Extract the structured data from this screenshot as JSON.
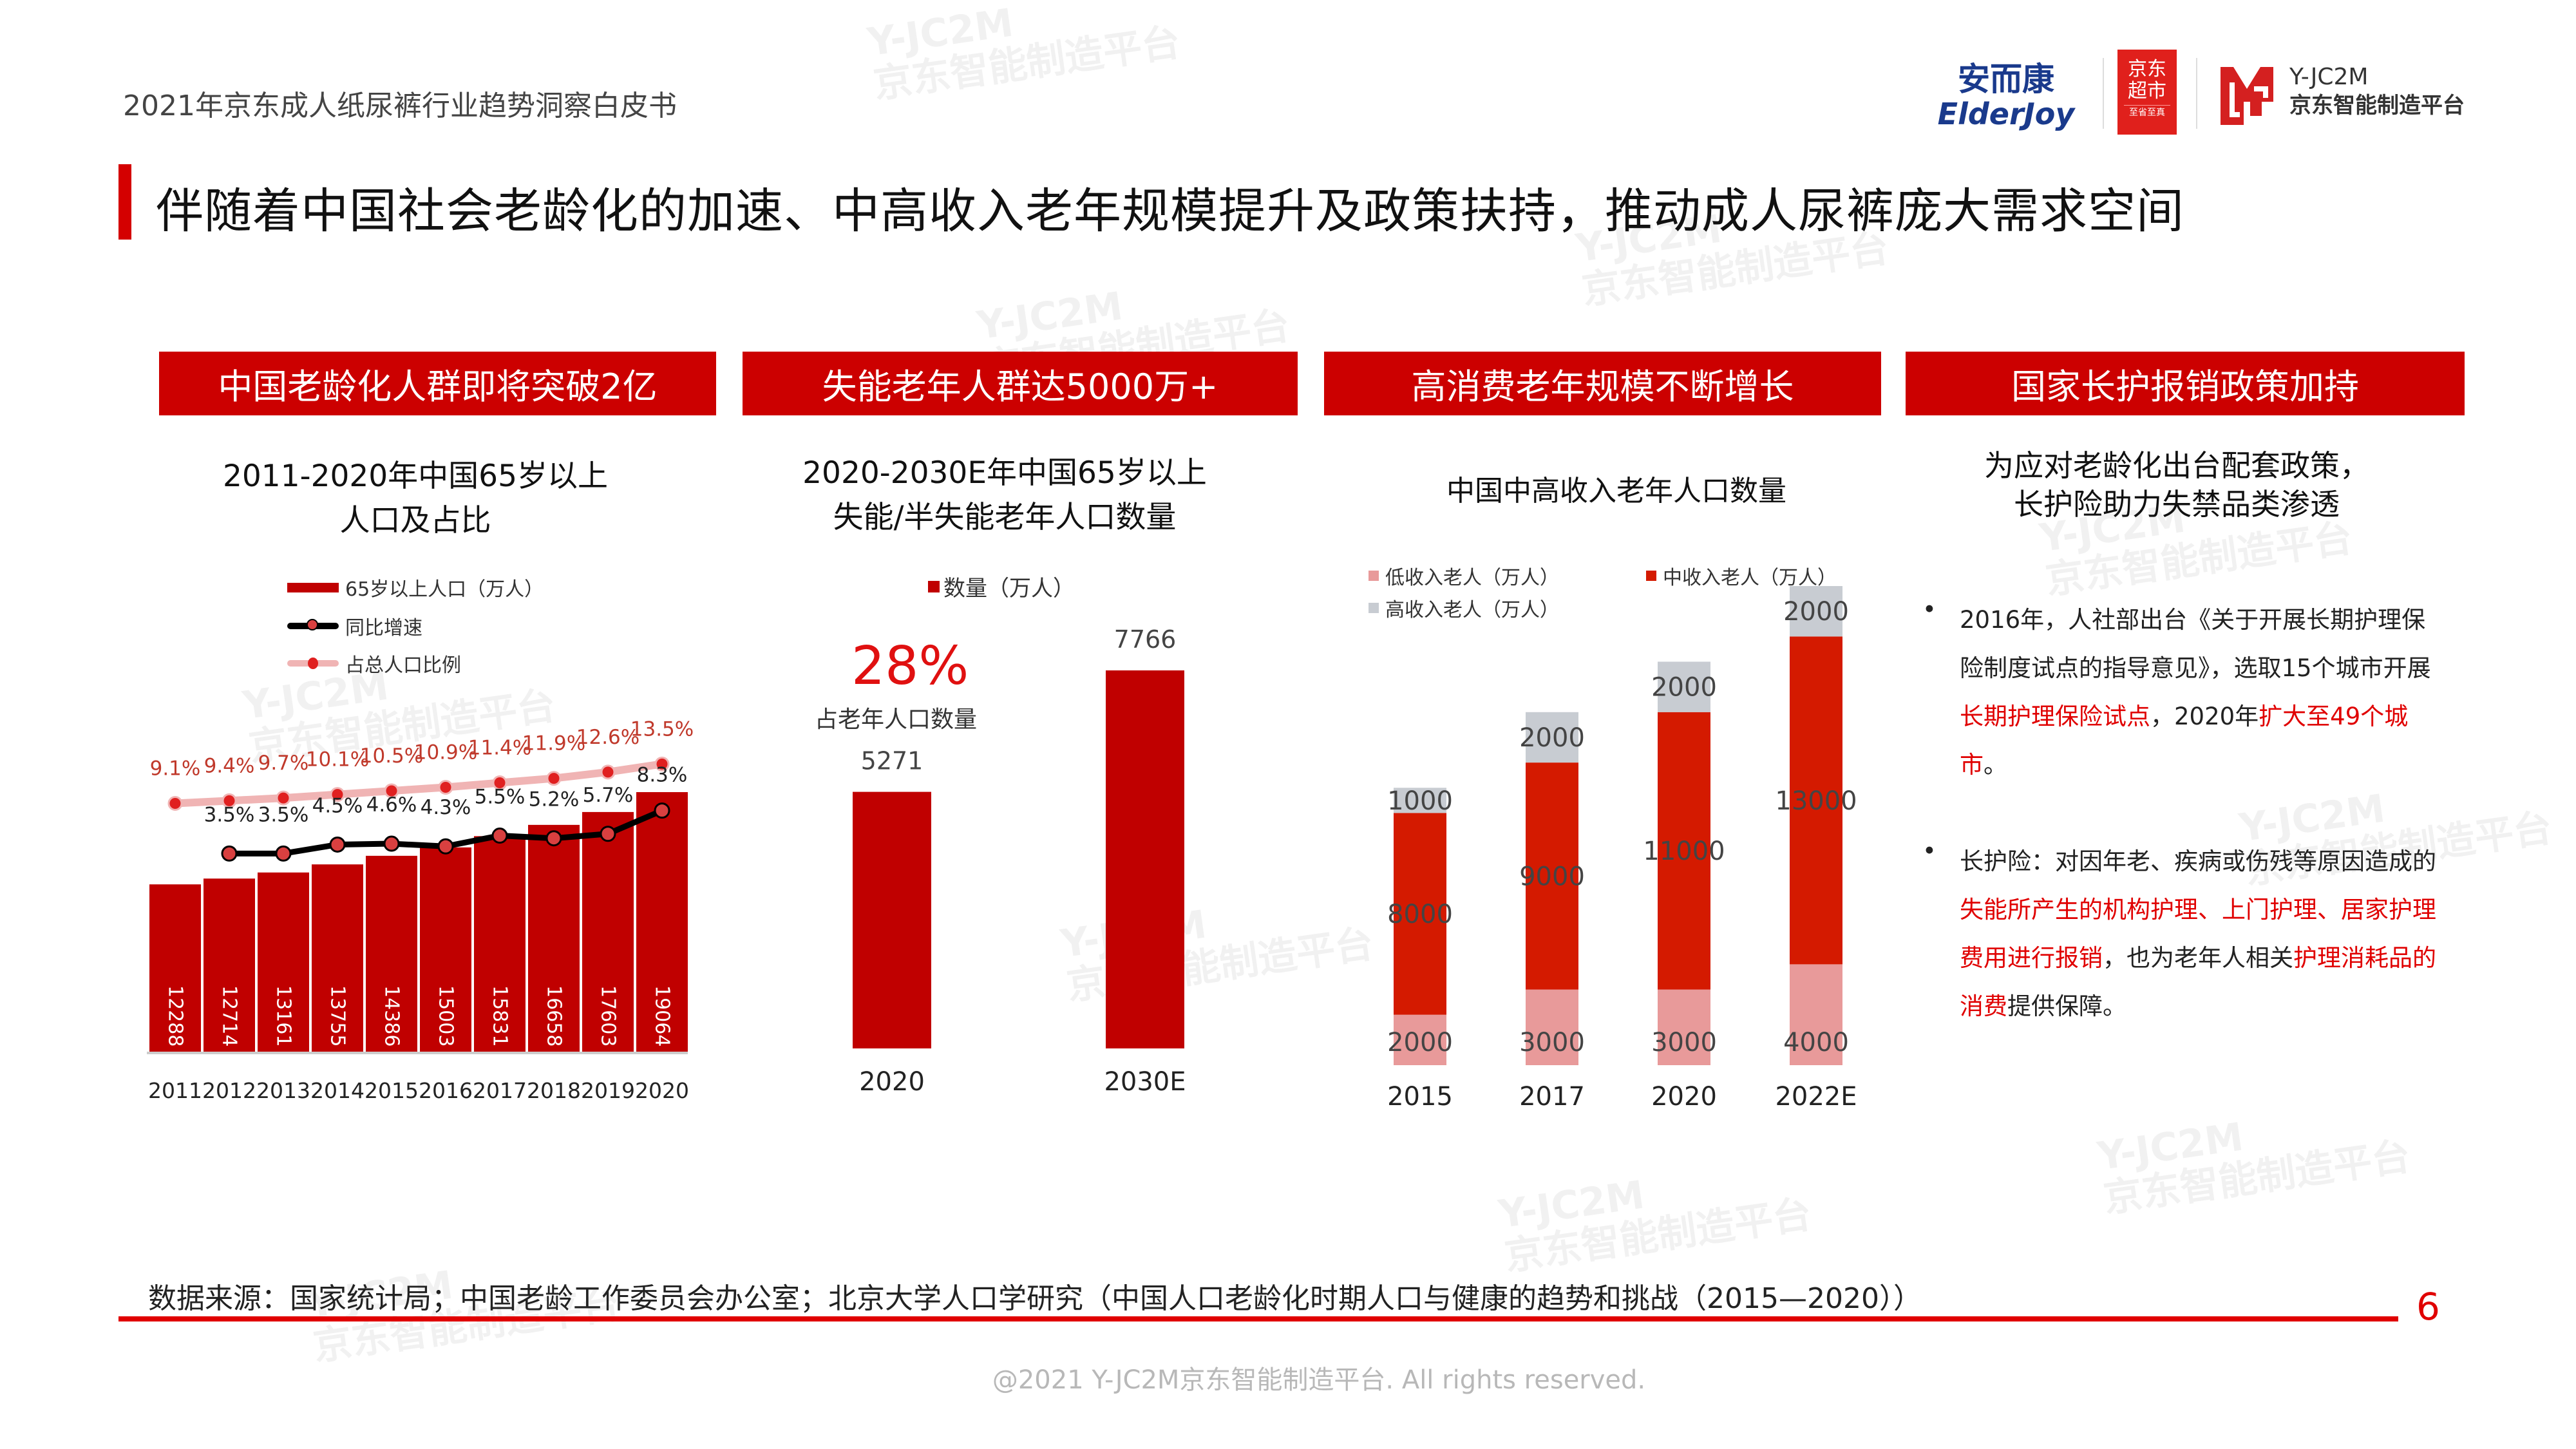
{
  "header": {
    "doc_title": "2021年京东成人纸尿裤行业趋势洞察白皮书",
    "logos": {
      "elderjoy_cn": "安而康",
      "elderjoy_en": "ElderJoy",
      "jd_super_line1": "京东",
      "jd_super_line2": "超市",
      "jd_super_slogan": "至省至真",
      "yjc2m_en": "Y-JC2M",
      "yjc2m_cn": "京东智能制造平台"
    }
  },
  "main_title": "伴随着中国社会老龄化的加速、中高收入老年规模提升及政策扶持，推动成人尿裤庞大需求空间",
  "sections": [
    {
      "header": "中国老龄化人群即将突破2亿"
    },
    {
      "header": "失能老年人群达5000万+"
    },
    {
      "header": "高消费老年规模不断增长"
    },
    {
      "header": "国家长护报销政策加持"
    }
  ],
  "colors": {
    "brand_red": "#cc0000",
    "bar_red": "#c00000",
    "ratio_line": "#f0b4b4",
    "ratio_dot": "#e02020",
    "growth_line": "#000000",
    "growth_dot": "#d94040",
    "low_income": "#e89a9a",
    "mid_income": "#d41a00",
    "high_income": "#c8ccd2",
    "highlight_text": "#e00000"
  },
  "chart_data": [
    {
      "type": "bar",
      "title_line1": "2011-2020年中国65岁以上",
      "title_line2": "人口及占比",
      "categories": [
        "2011",
        "2012",
        "2013",
        "2014",
        "2015",
        "2016",
        "2017",
        "2018",
        "2019",
        "2020"
      ],
      "series": [
        {
          "name": "65岁以上人口（万人）",
          "type": "bar",
          "values": [
            12288,
            12714,
            13161,
            13755,
            14386,
            15003,
            15831,
            16658,
            17603,
            19064
          ]
        },
        {
          "name": "同比增速",
          "type": "line",
          "unit": "%",
          "values": [
            null,
            3.5,
            3.5,
            4.5,
            4.6,
            4.3,
            5.5,
            5.2,
            5.7,
            8.3
          ]
        },
        {
          "name": "占总人口比例",
          "type": "line",
          "unit": "%",
          "values": [
            9.1,
            9.4,
            9.7,
            10.1,
            10.5,
            10.9,
            11.4,
            11.9,
            12.6,
            13.5
          ]
        }
      ],
      "legend_position": "top-left",
      "grid": false
    },
    {
      "type": "bar",
      "title_line1": "2020-2030E年中国65岁以上",
      "title_line2": "失能/半失能老年人口数量",
      "categories": [
        "2020",
        "2030E"
      ],
      "series": [
        {
          "name": "数量（万人）",
          "values": [
            5271,
            7766
          ]
        }
      ],
      "annotation_value": "28%",
      "annotation_label": "占老年人口数量",
      "legend_position": "top",
      "grid": false
    },
    {
      "type": "bar",
      "stacked": true,
      "title": "中国中高收入老年人口数量",
      "categories": [
        "2015",
        "2017",
        "2020",
        "2022E"
      ],
      "series": [
        {
          "name": "低收入老人（万人）",
          "values": [
            2000,
            3000,
            3000,
            4000
          ]
        },
        {
          "name": "中收入老人（万人）",
          "values": [
            8000,
            9000,
            11000,
            13000
          ]
        },
        {
          "name": "高收入老人（万人）",
          "values": [
            1000,
            2000,
            2000,
            2000
          ]
        }
      ],
      "legend_position": "top",
      "grid": false
    }
  ],
  "policy": {
    "title_line1": "为应对老龄化出台配套政策，",
    "title_line2": "长护险助力失禁品类渗透",
    "bullet1": [
      {
        "text": "2016年，人社部出台《关于开展长期护理保险制度试点的指导意见》，选取15个城市开展",
        "hl": false
      },
      {
        "text": "长期护理保险试点",
        "hl": true
      },
      {
        "text": "，2020年",
        "hl": false
      },
      {
        "text": "扩大至49个城市",
        "hl": true
      },
      {
        "text": "。",
        "hl": false
      }
    ],
    "bullet2": [
      {
        "text": "长护险：对因年老、疾病或伤残等原因造成的",
        "hl": false
      },
      {
        "text": "失能所产生的机构护理、上门护理、居家护理费用进行报销",
        "hl": true
      },
      {
        "text": "，也为老年人相关",
        "hl": false
      },
      {
        "text": "护理消耗品的消费",
        "hl": true
      },
      {
        "text": "提供保障。",
        "hl": false
      }
    ],
    "bullet_char": "•"
  },
  "footer": {
    "source": "数据来源：国家统计局；中国老龄工作委员会办公室；北京大学人口学研究（中国人口老龄化时期人口与健康的趋势和挑战（2015—2020））",
    "page_number": "6",
    "copyright": "@2021 Y-JC2M京东智能制造平台. All rights reserved."
  },
  "watermark": "Y-JC2M\n京东智能制造平台"
}
